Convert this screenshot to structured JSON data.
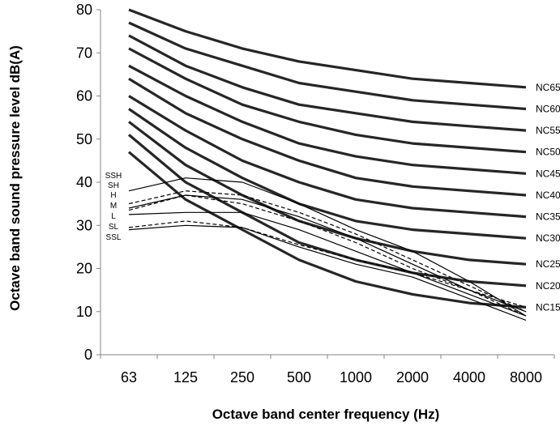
{
  "chart_data": {
    "type": "line",
    "xlabel": "Octave band center frequency (Hz)",
    "ylabel": "Octave band sound pressure level dB(A)",
    "categories": [
      "63",
      "125",
      "250",
      "500",
      "1000",
      "2000",
      "4000",
      "8000"
    ],
    "ylim": [
      0,
      80
    ],
    "yticks": [
      0,
      10,
      20,
      30,
      40,
      50,
      60,
      70,
      80
    ],
    "grid": false,
    "nc_curves": [
      {
        "name": "NC65",
        "values": [
          80,
          75,
          71,
          68,
          66,
          64,
          63,
          62
        ]
      },
      {
        "name": "NC60",
        "values": [
          77,
          71,
          67,
          63,
          61,
          59,
          58,
          57
        ]
      },
      {
        "name": "NC55",
        "values": [
          74,
          67,
          62,
          58,
          56,
          54,
          53,
          52
        ]
      },
      {
        "name": "NC50",
        "values": [
          71,
          64,
          58,
          54,
          51,
          49,
          48,
          47
        ]
      },
      {
        "name": "NC45",
        "values": [
          67,
          60,
          54,
          49,
          46,
          44,
          43,
          42
        ]
      },
      {
        "name": "NC40",
        "values": [
          64,
          56,
          50,
          45,
          41,
          39,
          38,
          37
        ]
      },
      {
        "name": "NC35",
        "values": [
          60,
          52,
          45,
          40,
          36,
          34,
          33,
          32
        ]
      },
      {
        "name": "NC30",
        "values": [
          57,
          48,
          41,
          35,
          31,
          29,
          28,
          27
        ]
      },
      {
        "name": "NC25",
        "values": [
          54,
          44,
          37,
          31,
          27,
          24,
          22,
          21
        ]
      },
      {
        "name": "NC20",
        "values": [
          51,
          40,
          33,
          26,
          22,
          19,
          17,
          16
        ]
      },
      {
        "name": "NC15",
        "values": [
          47,
          36,
          29,
          22,
          17,
          14,
          12,
          11
        ]
      }
    ],
    "room_spectra": [
      {
        "name": "SSH",
        "values": [
          38,
          41,
          40,
          35,
          29,
          24,
          17,
          9
        ],
        "dash": false
      },
      {
        "name": "SH",
        "values": [
          35,
          38,
          37,
          33,
          28,
          22,
          16,
          10
        ],
        "dash": true
      },
      {
        "name": "H",
        "values": [
          34,
          37,
          36,
          32,
          27,
          21,
          15,
          10
        ],
        "dash": false
      },
      {
        "name": "M",
        "values": [
          33.5,
          37,
          35,
          31,
          26,
          20,
          15,
          9
        ],
        "dash": true
      },
      {
        "name": "L",
        "values": [
          32.5,
          33,
          33,
          29,
          24,
          19,
          14,
          9
        ],
        "dash": false
      },
      {
        "name": "SL",
        "values": [
          29.5,
          31,
          29.5,
          25.5,
          22,
          19,
          15,
          11
        ],
        "dash": true
      },
      {
        "name": "SSL",
        "values": [
          29,
          30,
          29.5,
          25,
          21,
          18,
          13,
          8
        ],
        "dash": false
      }
    ]
  }
}
